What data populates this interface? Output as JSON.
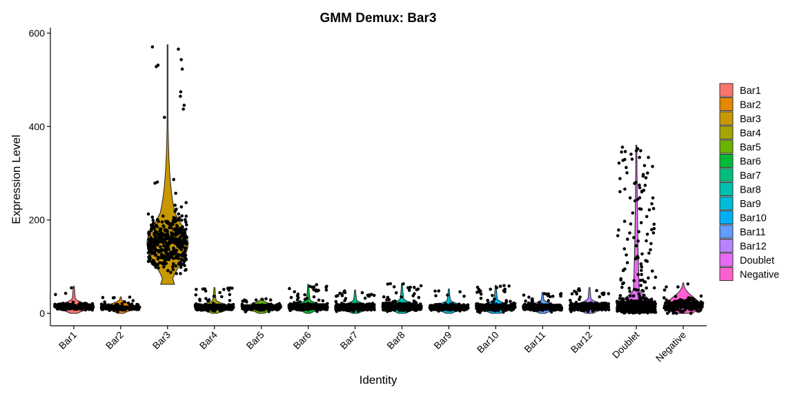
{
  "chart_data": {
    "type": "violin",
    "title": "GMM Demux: Bar3",
    "xlabel": "Identity",
    "ylabel": "Expression Level",
    "ylim": [
      -30,
      610
    ],
    "yticks": [
      0,
      200,
      400,
      600
    ],
    "grid": false,
    "legend_position": "right",
    "categories": [
      "Bar1",
      "Bar2",
      "Bar3",
      "Bar4",
      "Bar5",
      "Bar6",
      "Bar7",
      "Bar8",
      "Bar9",
      "Bar10",
      "Bar11",
      "Bar12",
      "Doublet",
      "Negative"
    ],
    "colors": [
      "#F8766D",
      "#E58700",
      "#C99800",
      "#A3A500",
      "#6BB100",
      "#00BA38",
      "#00BF7D",
      "#00C0AF",
      "#00BCD8",
      "#00B0F6",
      "#619CFF",
      "#B983FF",
      "#E76BF3",
      "#FD61D1"
    ],
    "series": [
      {
        "name": "Bar1",
        "min": 0,
        "median": 14,
        "q3": 22,
        "max": 58,
        "n": 160
      },
      {
        "name": "Bar2",
        "min": 0,
        "median": 13,
        "q3": 20,
        "max": 35,
        "n": 140
      },
      {
        "name": "Bar3",
        "min": 62,
        "median": 150,
        "q3": 200,
        "max": 575,
        "n": 420
      },
      {
        "name": "Bar4",
        "min": 0,
        "median": 13,
        "q3": 20,
        "max": 55,
        "n": 320
      },
      {
        "name": "Bar5",
        "min": 0,
        "median": 13,
        "q3": 20,
        "max": 32,
        "n": 240
      },
      {
        "name": "Bar6",
        "min": 0,
        "median": 14,
        "q3": 21,
        "max": 62,
        "n": 380
      },
      {
        "name": "Bar7",
        "min": 0,
        "median": 13,
        "q3": 20,
        "max": 50,
        "n": 380
      },
      {
        "name": "Bar8",
        "min": 0,
        "median": 14,
        "q3": 22,
        "max": 64,
        "n": 360
      },
      {
        "name": "Bar9",
        "min": 0,
        "median": 13,
        "q3": 20,
        "max": 52,
        "n": 340
      },
      {
        "name": "Bar10",
        "min": 0,
        "median": 13,
        "q3": 21,
        "max": 60,
        "n": 330
      },
      {
        "name": "Bar11",
        "min": 0,
        "median": 13,
        "q3": 20,
        "max": 45,
        "n": 320
      },
      {
        "name": "Bar12",
        "min": 0,
        "median": 14,
        "q3": 22,
        "max": 55,
        "n": 320
      },
      {
        "name": "Doublet",
        "min": 0,
        "median": 20,
        "q3": 35,
        "max": 360,
        "n": 650
      },
      {
        "name": "Negative",
        "min": 0,
        "median": 18,
        "q3": 35,
        "max": 65,
        "n": 200
      }
    ]
  }
}
